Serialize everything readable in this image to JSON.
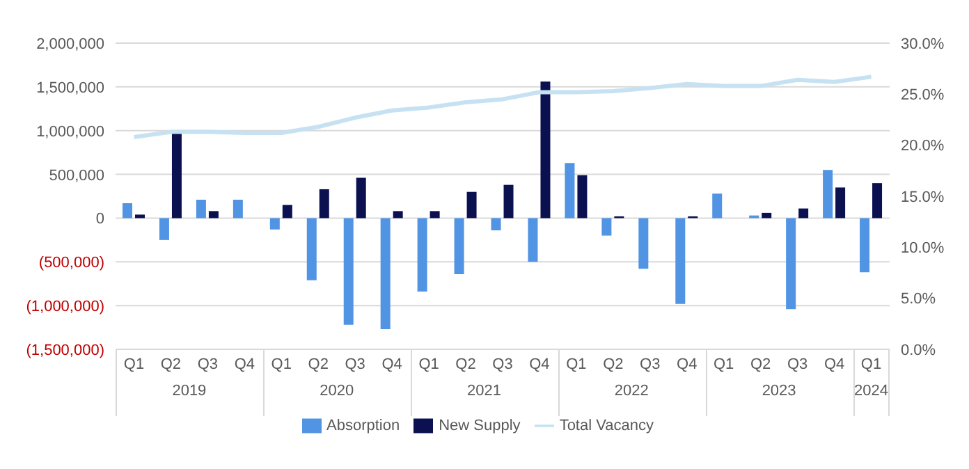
{
  "chart_data": {
    "type": "bar",
    "categories": [
      "Q1",
      "Q2",
      "Q3",
      "Q4",
      "Q1",
      "Q2",
      "Q3",
      "Q4",
      "Q1",
      "Q2",
      "Q3",
      "Q4",
      "Q1",
      "Q2",
      "Q3",
      "Q4",
      "Q1",
      "Q2",
      "Q3",
      "Q4",
      "Q1"
    ],
    "annotations": [
      "2019",
      "2020",
      "2021",
      "2022",
      "2023",
      "2024"
    ],
    "series": [
      {
        "name": "Absorption",
        "color": "#5094e3",
        "values": [
          170000,
          -250000,
          210000,
          210000,
          -130000,
          -710000,
          -1220000,
          -1270000,
          -840000,
          -640000,
          -140000,
          -500000,
          630000,
          -200000,
          -580000,
          -980000,
          280000,
          30000,
          -1040000,
          550000,
          -620000
        ]
      },
      {
        "name": "New Supply",
        "color": "#0b1150",
        "values": [
          40000,
          970000,
          80000,
          0,
          150000,
          330000,
          460000,
          80000,
          80000,
          300000,
          380000,
          1560000,
          490000,
          20000,
          0,
          20000,
          0,
          60000,
          110000,
          350000,
          400000
        ]
      },
      {
        "name": "Total Vacancy",
        "type": "line",
        "axis": "y2",
        "color": "#c6e2f2",
        "values": [
          20.8,
          21.3,
          21.3,
          21.2,
          21.2,
          21.8,
          22.7,
          23.4,
          23.7,
          24.2,
          24.5,
          25.2,
          25.2,
          25.3,
          25.6,
          26.0,
          25.8,
          25.8,
          26.4,
          26.2,
          26.7
        ]
      }
    ],
    "ylim": [
      -1500000,
      2000000
    ],
    "yticks": [
      {
        "value": -1500000,
        "label": "(1,500,000)"
      },
      {
        "value": -1000000,
        "label": "(1,000,000)"
      },
      {
        "value": -500000,
        "label": "(500,000)"
      },
      0,
      {
        "value": 500000,
        "label": "500,000"
      },
      {
        "value": 1000000,
        "label": "1,000,000"
      },
      {
        "value": 1500000,
        "label": "1,500,000"
      },
      {
        "value": 2000000,
        "label": "2,000,000"
      }
    ],
    "y2lim": [
      0,
      30
    ],
    "y2ticks": [
      {
        "value": 0,
        "label": "0.0%"
      },
      {
        "value": 5,
        "label": "5.0%"
      },
      {
        "value": 10,
        "label": "10.0%"
      },
      {
        "value": 15,
        "label": "15.0%"
      },
      {
        "value": 20,
        "label": "20.0%"
      },
      {
        "value": 25,
        "label": "25.0%"
      },
      {
        "value": 30,
        "label": "30.0%"
      }
    ],
    "grid": "y",
    "legend": "bottom",
    "marker": "none"
  }
}
